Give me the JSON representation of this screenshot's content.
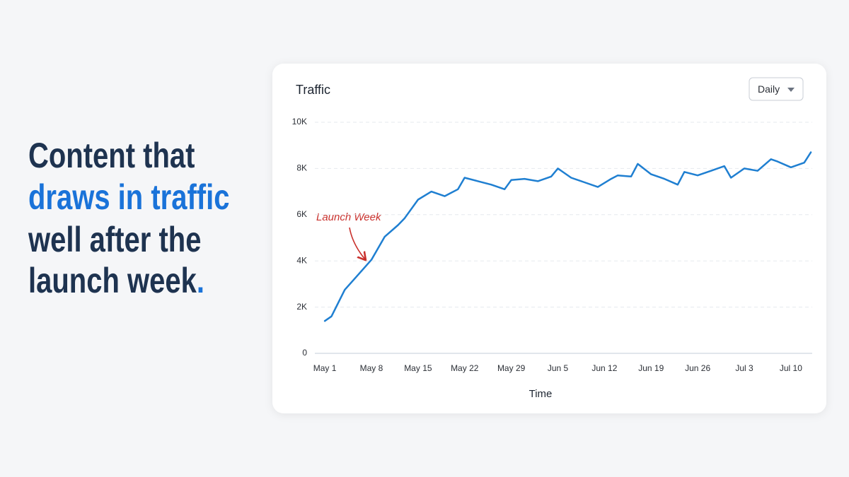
{
  "headline": {
    "lines": [
      "Content that",
      "draws in traffic",
      "well after the",
      "launch week"
    ],
    "end_mark": "."
  },
  "chart_data": {
    "type": "line",
    "title": "Traffic",
    "period_selector": "Daily",
    "x_label": "Time",
    "annotation": "Launch Week",
    "x": [
      0,
      1,
      3,
      5,
      7,
      9,
      11,
      12,
      14,
      16,
      18,
      20,
      21,
      23,
      25,
      27,
      28,
      30,
      32,
      34,
      35,
      37,
      39,
      41,
      43,
      44,
      46,
      47,
      49,
      51,
      53,
      54,
      56,
      58,
      60,
      61,
      63,
      65,
      67,
      68,
      70,
      72,
      73
    ],
    "values": [
      1400,
      1600,
      2750,
      3400,
      4050,
      5050,
      5550,
      5850,
      6650,
      7000,
      6800,
      7100,
      7600,
      7450,
      7300,
      7100,
      7500,
      7550,
      7450,
      7650,
      8000,
      7600,
      7400,
      7200,
      7550,
      7700,
      7650,
      8200,
      7750,
      7550,
      7300,
      7850,
      7700,
      7900,
      8100,
      7600,
      8000,
      7900,
      8400,
      8300,
      8050,
      8250,
      8700
    ],
    "color": "#1f7fd1",
    "xlim": [
      -1.5,
      73.2
    ],
    "xticks": [
      {
        "value": 0,
        "label": "May 1"
      },
      {
        "value": 7,
        "label": "May 8"
      },
      {
        "value": 14,
        "label": "May 15"
      },
      {
        "value": 21,
        "label": "May 22"
      },
      {
        "value": 28,
        "label": "May 29"
      },
      {
        "value": 35,
        "label": "Jun 5"
      },
      {
        "value": 42,
        "label": "Jun 12"
      },
      {
        "value": 49,
        "label": "Jun 19"
      },
      {
        "value": 56,
        "label": "Jun 26"
      },
      {
        "value": 63,
        "label": "Jul 3"
      },
      {
        "value": 70,
        "label": "Jul 10"
      }
    ],
    "ylim": [
      0,
      10000
    ],
    "yticks": [
      0,
      {
        "value": 2000,
        "label": "2K"
      },
      {
        "value": 4000,
        "label": "4K"
      },
      {
        "value": 6000,
        "label": "6K"
      },
      {
        "value": 8000,
        "label": "8K"
      },
      {
        "value": 10000,
        "label": "10K"
      }
    ],
    "grid": true
  }
}
